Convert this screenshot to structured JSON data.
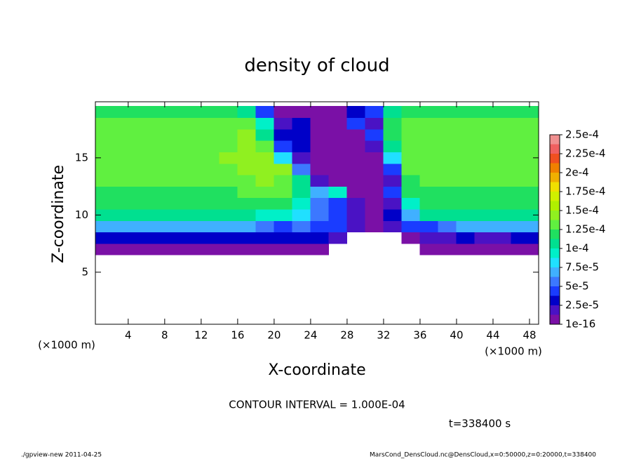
{
  "chart_data": {
    "type": "heatmap",
    "title": "density of cloud",
    "xlabel": "X-coordinate",
    "ylabel": "Z-coordinate",
    "x_unit_left": "(×1000 m)",
    "x_unit_right": "(×1000 m)",
    "contour_interval": "CONTOUR INTERVAL = 1.000E-04",
    "time": "t=338400 s",
    "footer_left": "./gpview-new   2011-04-25",
    "footer_right": "MarsCond_DensCloud.nc@DensCloud,x=0:50000,z=0:20000,t=338400",
    "x": [
      1,
      3,
      5,
      7,
      9,
      11,
      13,
      15,
      17,
      19,
      21,
      23,
      25,
      27,
      29,
      31,
      33,
      35,
      37,
      39,
      41,
      43,
      45,
      47,
      49
    ],
    "z": [
      7,
      8,
      9,
      10,
      11,
      12,
      13,
      14,
      15,
      16,
      17,
      18,
      19
    ],
    "values": [
      [
        0,
        0,
        0,
        0,
        0,
        0,
        0,
        0,
        0,
        0,
        0,
        0,
        0,
        null,
        null,
        null,
        null,
        null,
        0,
        0,
        0,
        0,
        0,
        0,
        0
      ],
      [
        3e-05,
        3e-05,
        3e-05,
        3e-05,
        3e-05,
        3e-05,
        3e-05,
        3e-05,
        3e-05,
        3e-05,
        3e-05,
        3e-05,
        3e-05,
        2e-05,
        null,
        null,
        null,
        0,
        2e-05,
        2e-05,
        3e-05,
        2e-05,
        2e-05,
        3e-05,
        3e-05
      ],
      [
        7e-05,
        7e-05,
        7e-05,
        7e-05,
        7e-05,
        7e-05,
        7e-05,
        7e-05,
        7e-05,
        6e-05,
        5e-05,
        6e-05,
        5e-05,
        4e-05,
        2e-05,
        0,
        2e-05,
        4e-05,
        5e-05,
        6e-05,
        7e-05,
        7e-05,
        7e-05,
        7e-05,
        7e-05
      ],
      [
        0.00011,
        0.00011,
        0.00011,
        0.00011,
        0.00011,
        0.00011,
        0.00011,
        0.00011,
        0.00011,
        0.0001,
        9e-05,
        8e-05,
        6e-05,
        4e-05,
        2e-05,
        1e-05,
        3e-05,
        7e-05,
        0.00011,
        0.00011,
        0.00011,
        0.00011,
        0.00011,
        0.00011,
        0.00011
      ],
      [
        0.00012,
        0.00012,
        0.00012,
        0.00012,
        0.00012,
        0.00012,
        0.00012,
        0.00012,
        0.00012,
        0.00012,
        0.00012,
        9e-05,
        6e-05,
        5e-05,
        2e-05,
        0,
        2e-05,
        0.0001,
        0.00012,
        0.00012,
        0.00012,
        0.00012,
        0.00012,
        0.00012,
        0.00012
      ],
      [
        0.00012,
        0.00012,
        0.00012,
        0.00012,
        0.00012,
        0.00012,
        0.00012,
        0.00012,
        0.00013,
        0.00013,
        0.00013,
        0.00011,
        7e-05,
        9e-05,
        0,
        0,
        5e-05,
        0.00012,
        0.00012,
        0.00012,
        0.00012,
        0.00012,
        0.00012,
        0.00012,
        0.00012
      ],
      [
        0.00013,
        0.00013,
        0.00013,
        0.00013,
        0.00013,
        0.00013,
        0.00013,
        0.00013,
        0.00013,
        0.00014,
        0.00013,
        0.00011,
        2e-05,
        0,
        0,
        0,
        2e-05,
        0.00012,
        0.00013,
        0.00013,
        0.00013,
        0.00013,
        0.00013,
        0.00013,
        0.00013
      ],
      [
        0.00013,
        0.00013,
        0.00013,
        0.00013,
        0.00013,
        0.00013,
        0.00013,
        0.00013,
        0.00014,
        0.00015,
        0.00014,
        6e-05,
        0,
        0,
        0,
        0,
        5e-05,
        0.00013,
        0.00013,
        0.00013,
        0.00013,
        0.00013,
        0.00013,
        0.00013,
        0.00013
      ],
      [
        0.00013,
        0.00013,
        0.00013,
        0.00013,
        0.00013,
        0.00013,
        0.00013,
        0.00014,
        0.00015,
        0.00015,
        8e-05,
        2e-05,
        0,
        0,
        0,
        0,
        8e-05,
        0.00013,
        0.00013,
        0.00013,
        0.00013,
        0.00013,
        0.00013,
        0.00013,
        0.00013
      ],
      [
        0.00013,
        0.00013,
        0.00013,
        0.00013,
        0.00013,
        0.00013,
        0.00013,
        0.00013,
        0.00014,
        0.00013,
        5e-05,
        3e-05,
        0,
        0,
        0,
        2e-05,
        0.00011,
        0.00013,
        0.00013,
        0.00013,
        0.00013,
        0.00013,
        0.00013,
        0.00013,
        0.00013
      ],
      [
        0.00013,
        0.00013,
        0.00013,
        0.00013,
        0.00013,
        0.00013,
        0.00013,
        0.00013,
        0.00014,
        0.00011,
        3e-05,
        3e-05,
        0,
        0,
        0,
        4e-05,
        0.00012,
        0.00013,
        0.00013,
        0.00013,
        0.00013,
        0.00013,
        0.00013,
        0.00013,
        0.00013
      ],
      [
        0.00013,
        0.00013,
        0.00013,
        0.00013,
        0.00013,
        0.00013,
        0.00013,
        0.00013,
        0.00013,
        9e-05,
        2e-05,
        3e-05,
        0,
        0,
        4e-05,
        2e-05,
        0.00012,
        0.00013,
        0.00013,
        0.00013,
        0.00013,
        0.00013,
        0.00013,
        0.00013,
        0.00013
      ],
      [
        0.00012,
        0.00012,
        0.00012,
        0.00012,
        0.00012,
        0.00012,
        0.00012,
        0.00012,
        0.00011,
        5e-05,
        0,
        0,
        0,
        0,
        3e-05,
        5e-05,
        0.00011,
        0.00012,
        0.00012,
        0.00012,
        0.00012,
        0.00012,
        0.00012,
        0.00012,
        0.00012
      ]
    ],
    "xlim": [
      0.4,
      49
    ],
    "ylim": [
      0.45,
      19.9
    ],
    "xticks": [
      4,
      8,
      12,
      16,
      20,
      24,
      28,
      32,
      36,
      40,
      44,
      48
    ],
    "yticks": [
      5,
      10,
      15
    ],
    "colorbar": {
      "clim": [
        1e-16,
        0.00025
      ],
      "colors": [
        "#7a10a6",
        "#4a12c4",
        "#0000c8",
        "#1a3cff",
        "#3c78ff",
        "#40b0ff",
        "#20e0ff",
        "#00f0c8",
        "#00e090",
        "#20e060",
        "#60f040",
        "#90f020",
        "#b0f000",
        "#d0f000",
        "#f0e000",
        "#f0b000",
        "#f08000",
        "#f05020",
        "#f06060",
        "#f09090"
      ],
      "ticks": [
        {
          "value": 1e-16,
          "label": "1e-16"
        },
        {
          "value": 2.5e-05,
          "label": "2.5e-5"
        },
        {
          "value": 5e-05,
          "label": "5e-5"
        },
        {
          "value": 7.5e-05,
          "label": "7.5e-5"
        },
        {
          "value": 0.0001,
          "label": "1e-4"
        },
        {
          "value": 0.000125,
          "label": "1.25e-4"
        },
        {
          "value": 0.00015,
          "label": "1.5e-4"
        },
        {
          "value": 0.000175,
          "label": "1.75e-4"
        },
        {
          "value": 0.0002,
          "label": "2e-4"
        },
        {
          "value": 0.000225,
          "label": "2.25e-4"
        },
        {
          "value": 0.00025,
          "label": "2.5e-4"
        }
      ]
    }
  }
}
